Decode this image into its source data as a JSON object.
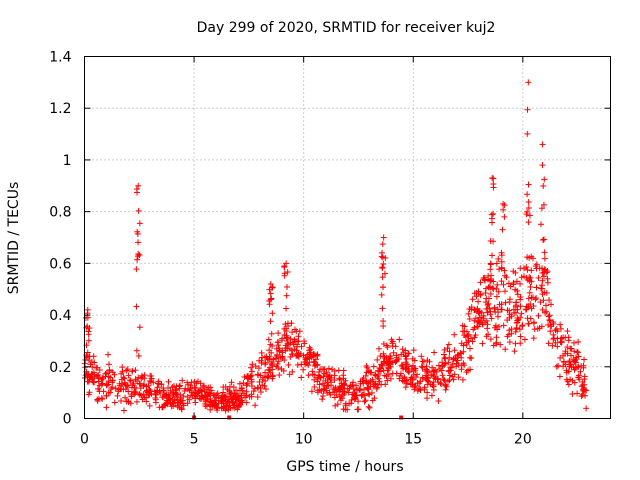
{
  "chart_data": {
    "type": "scatter",
    "title": "Day 299 of 2020, SRMTID for receiver kuj2",
    "xlabel": "GPS time / hours",
    "ylabel": "SRMTID / TECUs",
    "xlim": [
      0,
      24
    ],
    "ylim": [
      0,
      1.4
    ],
    "x_ticks": [
      0,
      5,
      10,
      15,
      20
    ],
    "x_tick_labels": [
      "0",
      "5",
      "10",
      "15",
      "20"
    ],
    "y_ticks": [
      0,
      0.2,
      0.4,
      0.6,
      0.8,
      1.0,
      1.2,
      1.4
    ],
    "y_tick_labels": [
      "0",
      "0.2",
      "0.4",
      "0.6",
      "0.8",
      "1",
      "1.2",
      "1.4"
    ],
    "grid": true,
    "marker": "+",
    "series_color": "#ff0000",
    "trend": {
      "x": [
        0,
        0.5,
        1,
        1.5,
        2,
        2.5,
        3,
        3.5,
        4,
        4.5,
        5,
        5.5,
        6,
        6.5,
        7,
        7.5,
        8,
        8.5,
        9,
        9.5,
        10,
        10.5,
        11,
        11.5,
        12,
        12.5,
        13,
        13.5,
        14,
        14.5,
        15,
        15.5,
        16,
        16.5,
        17,
        17.5,
        18,
        18.5,
        19,
        19.5,
        20,
        20.5,
        21,
        21.5,
        22,
        22.5,
        22.9
      ],
      "y": [
        0.18,
        0.15,
        0.14,
        0.13,
        0.12,
        0.14,
        0.11,
        0.1,
        0.09,
        0.09,
        0.1,
        0.09,
        0.07,
        0.07,
        0.09,
        0.12,
        0.17,
        0.2,
        0.24,
        0.27,
        0.25,
        0.2,
        0.14,
        0.1,
        0.09,
        0.09,
        0.12,
        0.2,
        0.22,
        0.2,
        0.18,
        0.16,
        0.16,
        0.18,
        0.22,
        0.3,
        0.4,
        0.45,
        0.42,
        0.4,
        0.48,
        0.5,
        0.52,
        0.3,
        0.22,
        0.18,
        0.12
      ]
    },
    "spread": {
      "x": [
        0,
        2,
        4,
        6,
        8,
        9.5,
        11,
        13,
        14.5,
        16,
        17.5,
        18.5,
        19.5,
        20.5,
        21.5,
        22.9
      ],
      "y": [
        0.08,
        0.07,
        0.05,
        0.04,
        0.08,
        0.1,
        0.07,
        0.07,
        0.08,
        0.07,
        0.1,
        0.15,
        0.15,
        0.18,
        0.1,
        0.08
      ]
    },
    "peaks": [
      {
        "x": 2.45,
        "top": 0.9,
        "bottom": 0.2
      },
      {
        "x": 13.65,
        "top": 0.7,
        "bottom": 0.3
      },
      {
        "x": 18.6,
        "top": 0.93,
        "bottom": 0.4
      },
      {
        "x": 19.1,
        "top": 0.83,
        "bottom": 0.4
      },
      {
        "x": 20.25,
        "top": 1.3,
        "bottom": 0.4
      },
      {
        "x": 20.9,
        "top": 1.06,
        "bottom": 0.4
      },
      {
        "x": 9.2,
        "top": 0.6,
        "bottom": 0.25
      },
      {
        "x": 8.5,
        "top": 0.52,
        "bottom": 0.2
      },
      {
        "x": 0.15,
        "top": 0.42,
        "bottom": 0.18
      }
    ],
    "baseline_markers": [
      5.0,
      6.6,
      14.45
    ]
  }
}
